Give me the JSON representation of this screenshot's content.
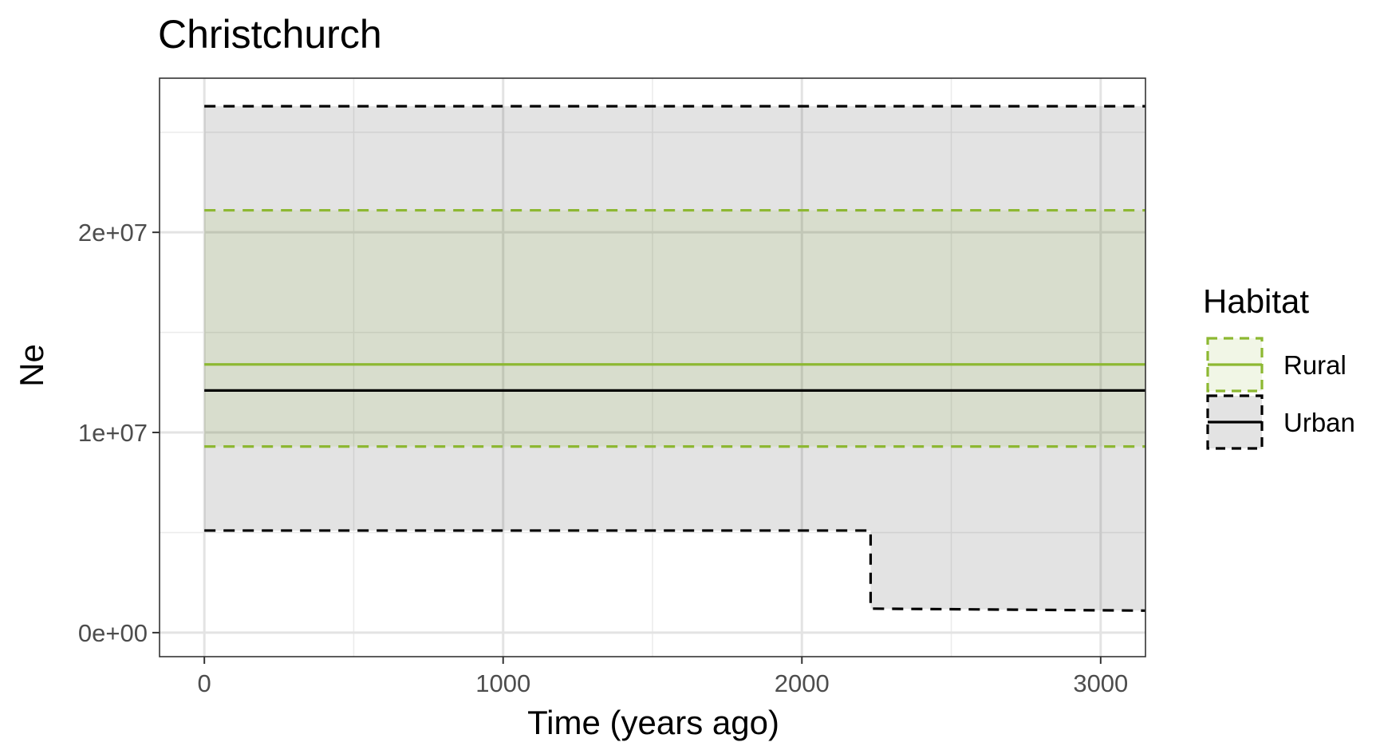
{
  "chart_data": {
    "type": "line",
    "title": "Christchurch",
    "xlabel": "Time (years ago)",
    "ylabel": "Ne",
    "xlim": [
      -150,
      3150
    ],
    "ylim": [
      -1200000,
      27700000
    ],
    "x_ticks": [
      0,
      1000,
      2000,
      3000
    ],
    "x_tick_labels": [
      "0",
      "1000",
      "2000",
      "3000"
    ],
    "y_ticks": [
      0,
      10000000,
      20000000
    ],
    "y_tick_labels": [
      "0e+00",
      "1e+07",
      "2e+07"
    ],
    "grid": true,
    "legend": {
      "title": "Habitat",
      "position": "right"
    },
    "series": [
      {
        "name": "Rural",
        "color": "#8db832",
        "median": {
          "x": [
            0,
            3150
          ],
          "y": [
            13400000,
            13400000
          ]
        },
        "lower": {
          "x": [
            0,
            3150
          ],
          "y": [
            9300000,
            9300000
          ]
        },
        "upper": {
          "x": [
            0,
            3150
          ],
          "y": [
            21100000,
            21100000
          ]
        }
      },
      {
        "name": "Urban",
        "color": "#000000",
        "median": {
          "x": [
            0,
            3150
          ],
          "y": [
            12100000,
            12100000
          ]
        },
        "lower": {
          "x": [
            0,
            2230,
            2230,
            3150
          ],
          "y": [
            5100000,
            5100000,
            1200000,
            1100000
          ]
        },
        "upper": {
          "x": [
            0,
            3150
          ],
          "y": [
            26300000,
            26300000
          ]
        }
      }
    ]
  }
}
